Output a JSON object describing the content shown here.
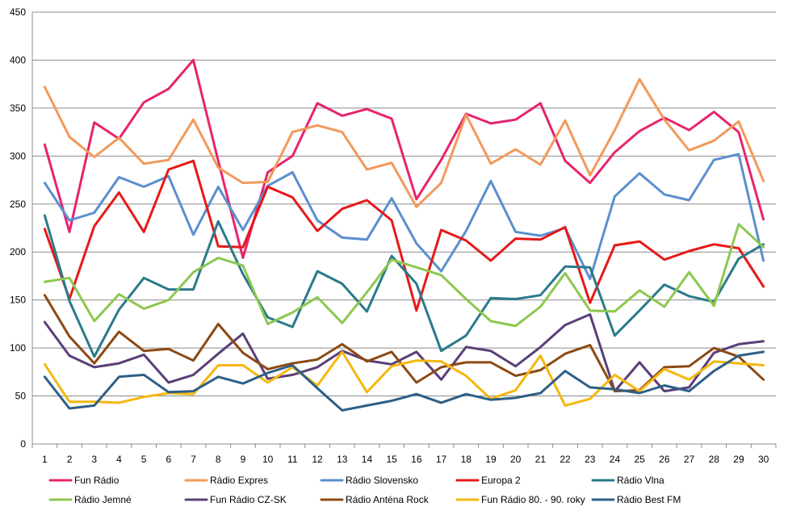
{
  "chart_data": {
    "type": "line",
    "title": "",
    "xlabel": "",
    "ylabel": "",
    "ylim": [
      0,
      450
    ],
    "yticks": [
      0,
      50,
      100,
      150,
      200,
      250,
      300,
      350,
      400,
      450
    ],
    "grid": true,
    "legend_position": "bottom",
    "x": [
      1,
      2,
      3,
      4,
      5,
      6,
      7,
      8,
      9,
      10,
      11,
      12,
      13,
      14,
      15,
      16,
      17,
      18,
      19,
      20,
      21,
      22,
      23,
      24,
      25,
      26,
      27,
      28,
      29,
      30
    ],
    "series": [
      {
        "name": "Fun Rádio",
        "color": "#e8236f",
        "values": [
          312,
          221,
          335,
          318,
          356,
          370,
          400,
          295,
          194,
          283,
          300,
          355,
          342,
          349,
          339,
          255,
          296,
          344,
          334,
          338,
          355,
          295,
          272,
          304,
          326,
          340,
          327,
          346,
          325,
          234
        ]
      },
      {
        "name": "Rádio Expres",
        "color": "#f19a5a",
        "values": [
          372,
          320,
          299,
          319,
          292,
          296,
          338,
          288,
          272,
          273,
          325,
          332,
          325,
          286,
          293,
          247,
          272,
          343,
          292,
          307,
          291,
          337,
          280,
          327,
          380,
          338,
          306,
          316,
          336,
          274
        ]
      },
      {
        "name": "Rádio Slovensko",
        "color": "#5b8fcf",
        "values": [
          272,
          233,
          241,
          278,
          268,
          279,
          218,
          268,
          223,
          269,
          283,
          233,
          215,
          213,
          256,
          209,
          180,
          222,
          274,
          221,
          217,
          225,
          172,
          258,
          282,
          260,
          254,
          296,
          302,
          191
        ]
      },
      {
        "name": "Europa 2",
        "color": "#e81818",
        "values": [
          224,
          151,
          227,
          262,
          221,
          286,
          295,
          206,
          205,
          268,
          257,
          222,
          245,
          254,
          233,
          139,
          223,
          212,
          191,
          214,
          213,
          226,
          147,
          207,
          211,
          192,
          201,
          208,
          204,
          164
        ]
      },
      {
        "name": "Rádio Vlna",
        "color": "#2a7a8a",
        "values": [
          238,
          149,
          91,
          140,
          173,
          161,
          161,
          232,
          177,
          132,
          122,
          180,
          167,
          138,
          196,
          167,
          97,
          113,
          152,
          151,
          155,
          185,
          184,
          113,
          139,
          166,
          154,
          148,
          193,
          208
        ]
      },
      {
        "name": "Rádio Jemné",
        "color": "#8cc850",
        "values": [
          169,
          173,
          128,
          156,
          141,
          150,
          179,
          194,
          186,
          125,
          137,
          153,
          126,
          158,
          192,
          184,
          176,
          151,
          128,
          123,
          143,
          178,
          139,
          138,
          160,
          143,
          179,
          144,
          229,
          205
        ]
      },
      {
        "name": "Fun Rádio CZ-SK",
        "color": "#5a3f78",
        "values": [
          127,
          92,
          80,
          84,
          93,
          64,
          72,
          94,
          115,
          68,
          72,
          80,
          97,
          87,
          83,
          96,
          67,
          101,
          97,
          81,
          101,
          124,
          135,
          55,
          85,
          55,
          59,
          95,
          104,
          107
        ]
      },
      {
        "name": "Rádio Anténa Rock",
        "color": "#8b4a14",
        "values": [
          155,
          112,
          84,
          117,
          97,
          99,
          87,
          125,
          95,
          78,
          84,
          88,
          104,
          86,
          96,
          64,
          80,
          85,
          85,
          71,
          77,
          94,
          103,
          55,
          56,
          80,
          81,
          100,
          91,
          67
        ]
      },
      {
        "name": "Fun Rádio 80. - 90. roky",
        "color": "#f5b70f",
        "values": [
          83,
          44,
          44,
          43,
          49,
          53,
          52,
          82,
          82,
          64,
          80,
          61,
          96,
          54,
          81,
          87,
          86,
          71,
          47,
          56,
          92,
          40,
          47,
          72,
          55,
          78,
          67,
          86,
          84,
          82
        ]
      },
      {
        "name": "Rádio Best FM",
        "color": "#2f5f86",
        "values": [
          70,
          37,
          40,
          70,
          72,
          54,
          55,
          70,
          63,
          74,
          82,
          58,
          35,
          40,
          45,
          52,
          43,
          52,
          46,
          48,
          53,
          76,
          59,
          57,
          53,
          61,
          55,
          76,
          92,
          96
        ]
      }
    ]
  }
}
